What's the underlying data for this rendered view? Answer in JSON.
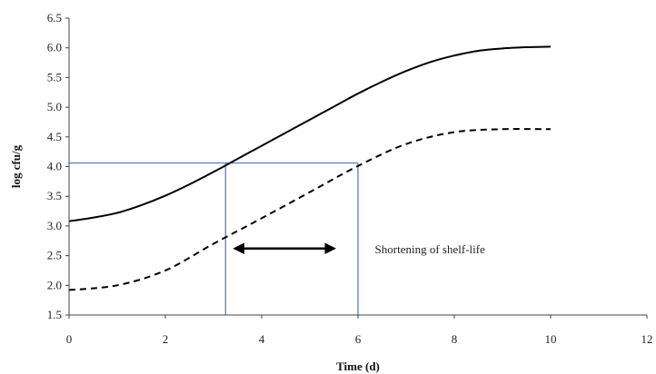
{
  "chart_data": {
    "type": "line",
    "xlabel": "Time (d)",
    "ylabel": "log cfu/g",
    "xlim": [
      0,
      12
    ],
    "ylim": [
      1.5,
      6.5
    ],
    "xticks": [
      0,
      2,
      4,
      6,
      8,
      10,
      12
    ],
    "yticks": [
      1.5,
      2.0,
      2.5,
      3.0,
      3.5,
      4.0,
      4.5,
      5.0,
      5.5,
      6.0,
      6.5
    ],
    "ytick_labels": [
      "1.5",
      "2.0",
      "2.5",
      "3.0",
      "3.5",
      "4.0",
      "4.5",
      "5.0",
      "5.5",
      "6.0",
      "6.5"
    ],
    "grid": false,
    "series": [
      {
        "style": "solid",
        "color": "#000000",
        "x": [
          0,
          0.5,
          1,
          1.5,
          2,
          2.5,
          3,
          3.5,
          4,
          4.5,
          5,
          5.5,
          6,
          6.5,
          7,
          7.5,
          8,
          8.5,
          9,
          9.5,
          10
        ],
        "y": [
          3.08,
          3.14,
          3.22,
          3.35,
          3.51,
          3.7,
          3.91,
          4.13,
          4.35,
          4.57,
          4.79,
          5.01,
          5.23,
          5.43,
          5.61,
          5.76,
          5.87,
          5.95,
          5.99,
          6.01,
          6.02
        ]
      },
      {
        "style": "dashed",
        "color": "#000000",
        "x": [
          0,
          1,
          2,
          3,
          4,
          5,
          6,
          7,
          8,
          9,
          10
        ],
        "y": [
          1.92,
          2.0,
          2.25,
          2.7,
          3.13,
          3.57,
          4.01,
          4.38,
          4.58,
          4.63,
          4.63
        ]
      }
    ],
    "reference_lines": {
      "color": "#4a78b8",
      "threshold_y": 4.06,
      "x_start": 3.25,
      "x_end": 6.0
    },
    "annotation": {
      "text": "Shortening of shelf-life",
      "arrow_x": [
        3.45,
        5.5
      ],
      "arrow_y": 2.62,
      "text_x": 6.35,
      "text_y": 2.62
    }
  }
}
